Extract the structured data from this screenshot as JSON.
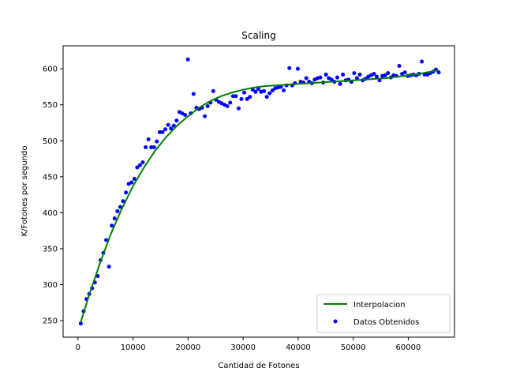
{
  "chart_data": {
    "type": "scatter",
    "title": "Scaling",
    "xlabel": "Cantidad de Fotones",
    "ylabel": "K/Fotones por segundo",
    "xlim": [
      -2700,
      68400
    ],
    "ylim": [
      227,
      632
    ],
    "xticks": [
      0,
      10000,
      20000,
      30000,
      40000,
      50000,
      60000
    ],
    "yticks": [
      250,
      300,
      350,
      400,
      450,
      500,
      550,
      600
    ],
    "grid": false,
    "legend_position": "lower-right",
    "series": [
      {
        "name": "Interpolacion",
        "kind": "line",
        "color": "#008000",
        "x": [
          512,
          2000,
          4000,
          6000,
          8000,
          10000,
          12000,
          14000,
          16000,
          18000,
          20000,
          22000,
          24000,
          26000,
          28000,
          30000,
          32000,
          34000,
          36000,
          38000,
          40000,
          42000,
          44000,
          46000,
          48000,
          50000,
          52000,
          54000,
          56000,
          58000,
          60000,
          62000,
          64000,
          65536
        ],
        "y": [
          248,
          285,
          330,
          371,
          406,
          437,
          463,
          486,
          505,
          521,
          534,
          546,
          555,
          562,
          567,
          571,
          574,
          576,
          577,
          578,
          579,
          580,
          581,
          582,
          583,
          584,
          585,
          586,
          587,
          589,
          591,
          593,
          596,
          598
        ]
      },
      {
        "name": "Datos Obtenidos",
        "kind": "scatter",
        "color": "#0000ff",
        "x": [
          512,
          1024,
          1536,
          2048,
          2560,
          3072,
          3584,
          4096,
          4608,
          5120,
          5632,
          6144,
          6656,
          7168,
          7680,
          8192,
          8704,
          9216,
          9728,
          10240,
          10752,
          11264,
          11776,
          12288,
          12800,
          13312,
          13824,
          14336,
          14848,
          15360,
          15872,
          16384,
          16896,
          17408,
          17920,
          18432,
          18944,
          19456,
          19968,
          20480,
          20992,
          21504,
          22016,
          22528,
          23040,
          23552,
          24064,
          24576,
          25088,
          25600,
          26112,
          26624,
          27136,
          27648,
          28160,
          28672,
          29184,
          29696,
          30208,
          30720,
          31232,
          31744,
          32256,
          32768,
          33280,
          33792,
          34304,
          34816,
          35328,
          35840,
          36352,
          36864,
          37376,
          37888,
          38400,
          38912,
          39424,
          39936,
          40448,
          40960,
          41472,
          41984,
          42496,
          43008,
          43520,
          44032,
          44544,
          45056,
          45568,
          46080,
          46592,
          47104,
          47616,
          48128,
          48640,
          49152,
          49664,
          50176,
          50688,
          51200,
          51712,
          52224,
          52736,
          53248,
          53760,
          54272,
          54784,
          55296,
          55808,
          56320,
          56832,
          57344,
          57856,
          58368,
          58880,
          59392,
          59904,
          60416,
          60928,
          61440,
          61952,
          62464,
          62976,
          63488,
          64000,
          64512,
          65024,
          65536
        ],
        "y": [
          246,
          263,
          280,
          287,
          295,
          303,
          312,
          334,
          344,
          362,
          325,
          382,
          392,
          402,
          408,
          416,
          428,
          440,
          442,
          447,
          463,
          466,
          470,
          491,
          502,
          491,
          491,
          499,
          512,
          512,
          516,
          522,
          517,
          521,
          528,
          540,
          538,
          536,
          613,
          538,
          565,
          546,
          544,
          546,
          534,
          548,
          553,
          569,
          557,
          554,
          552,
          550,
          548,
          553,
          562,
          562,
          545,
          558,
          567,
          558,
          561,
          571,
          568,
          572,
          568,
          569,
          561,
          566,
          570,
          573,
          574,
          575,
          570,
          577,
          601,
          577,
          580,
          600,
          582,
          581,
          587,
          582,
          580,
          585,
          587,
          588,
          581,
          592,
          587,
          585,
          582,
          588,
          579,
          592,
          584,
          585,
          582,
          594,
          587,
          592,
          584,
          586,
          589,
          591,
          593,
          589,
          584,
          590,
          591,
          594,
          588,
          591,
          590,
          604,
          593,
          595,
          590,
          591,
          592,
          591,
          593,
          610,
          592,
          592,
          594,
          596,
          599,
          595
        ]
      }
    ]
  }
}
